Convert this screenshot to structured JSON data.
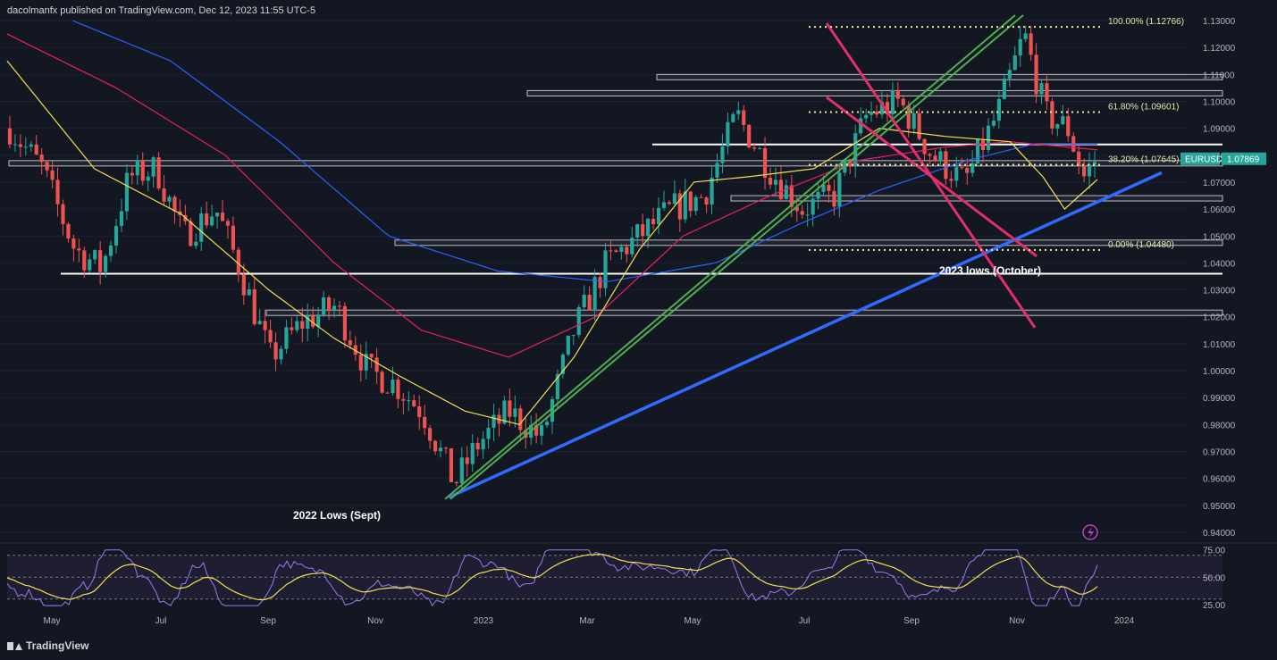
{
  "publisher": "dacolmanfx published on TradingView.com, Dec 12, 2023 11:55 UTC-5",
  "branding": "TradingView",
  "colors": {
    "background": "#131722",
    "candle_up": "#26a69a",
    "candle_down": "#ef5350",
    "sma_short": "#f5e050",
    "sma_mid": "#e91e63",
    "sma_long": "#2962ff",
    "trendline_up": "#2f6bff",
    "channel_down": "#e0306a",
    "channel_up": "#4caf50",
    "rsi": "#9b7cf0",
    "rsi_ma": "#f5e050",
    "price_tag": "#26a69a"
  },
  "annotations": {
    "low_2022": "2022 Lows (Sept)",
    "low_2023": "2023 lows (October)"
  },
  "chart_data": [
    {
      "type": "candlestick",
      "symbol": "EURUSD",
      "last_price": "1.07869",
      "ylim": [
        0.937,
        1.131
      ],
      "x_ticks": [
        "May",
        "Jul",
        "Sep",
        "Nov",
        "2023",
        "Mar",
        "May",
        "Jul",
        "Sep",
        "Nov",
        "2024"
      ],
      "y_ticks": [
        "1.13000",
        "1.12000",
        "1.11000",
        "1.10000",
        "1.09000",
        "1.08000",
        "1.07000",
        "1.06000",
        "1.05000",
        "1.04000",
        "1.03000",
        "1.02000",
        "1.01000",
        "1.00000",
        "0.99000",
        "0.98000",
        "0.97000",
        "0.96000",
        "0.95000",
        "0.94000"
      ],
      "path_anchors": [
        {
          "t": 0,
          "p": 1.09
        },
        {
          "t": 0.03,
          "p": 1.075
        },
        {
          "t": 0.06,
          "p": 1.045
        },
        {
          "t": 0.085,
          "p": 1.038
        },
        {
          "t": 0.11,
          "p": 1.072
        },
        {
          "t": 0.135,
          "p": 1.075
        },
        {
          "t": 0.16,
          "p": 1.05
        },
        {
          "t": 0.19,
          "p": 1.06
        },
        {
          "t": 0.21,
          "p": 1.04
        },
        {
          "t": 0.24,
          "p": 1.005
        },
        {
          "t": 0.27,
          "p": 1.018
        },
        {
          "t": 0.3,
          "p": 1.024
        },
        {
          "t": 0.33,
          "p": 1.0
        },
        {
          "t": 0.355,
          "p": 0.995
        },
        {
          "t": 0.38,
          "p": 0.985
        },
        {
          "t": 0.41,
          "p": 0.958
        },
        {
          "t": 0.43,
          "p": 0.972
        },
        {
          "t": 0.46,
          "p": 0.985
        },
        {
          "t": 0.49,
          "p": 0.975
        },
        {
          "t": 0.52,
          "p": 1.015
        },
        {
          "t": 0.55,
          "p": 1.04
        },
        {
          "t": 0.58,
          "p": 1.05
        },
        {
          "t": 0.61,
          "p": 1.06
        },
        {
          "t": 0.64,
          "p": 1.065
        },
        {
          "t": 0.67,
          "p": 1.095
        },
        {
          "t": 0.7,
          "p": 1.075
        },
        {
          "t": 0.73,
          "p": 1.06
        },
        {
          "t": 0.76,
          "p": 1.065
        },
        {
          "t": 0.79,
          "p": 1.095
        },
        {
          "t": 0.82,
          "p": 1.1
        },
        {
          "t": 0.85,
          "p": 1.08
        },
        {
          "t": 0.88,
          "p": 1.07
        },
        {
          "t": 0.91,
          "p": 1.095
        },
        {
          "t": 0.935,
          "p": 1.125
        },
        {
          "t": 0.955,
          "p": 1.095
        },
        {
          "t": 0.975,
          "p": 1.09
        },
        {
          "t": 0.99,
          "p": 1.072
        },
        {
          "t": 1.0,
          "p": 1.078
        }
      ],
      "sma_short_anchors": [
        {
          "t": 0,
          "p": 1.115
        },
        {
          "t": 0.08,
          "p": 1.075
        },
        {
          "t": 0.16,
          "p": 1.058
        },
        {
          "t": 0.24,
          "p": 1.03
        },
        {
          "t": 0.3,
          "p": 1.012
        },
        {
          "t": 0.36,
          "p": 0.998
        },
        {
          "t": 0.42,
          "p": 0.985
        },
        {
          "t": 0.47,
          "p": 0.98
        },
        {
          "t": 0.52,
          "p": 1.005
        },
        {
          "t": 0.58,
          "p": 1.045
        },
        {
          "t": 0.63,
          "p": 1.07
        },
        {
          "t": 0.68,
          "p": 1.072
        },
        {
          "t": 0.74,
          "p": 1.075
        },
        {
          "t": 0.8,
          "p": 1.09
        },
        {
          "t": 0.86,
          "p": 1.087
        },
        {
          "t": 0.92,
          "p": 1.085
        },
        {
          "t": 0.95,
          "p": 1.072
        },
        {
          "t": 0.97,
          "p": 1.06
        },
        {
          "t": 1.0,
          "p": 1.071
        }
      ],
      "sma_mid_anchors": [
        {
          "t": 0,
          "p": 1.125
        },
        {
          "t": 0.1,
          "p": 1.105
        },
        {
          "t": 0.2,
          "p": 1.08
        },
        {
          "t": 0.3,
          "p": 1.04
        },
        {
          "t": 0.38,
          "p": 1.015
        },
        {
          "t": 0.46,
          "p": 1.005
        },
        {
          "t": 0.54,
          "p": 1.02
        },
        {
          "t": 0.62,
          "p": 1.05
        },
        {
          "t": 0.7,
          "p": 1.065
        },
        {
          "t": 0.78,
          "p": 1.078
        },
        {
          "t": 0.86,
          "p": 1.083
        },
        {
          "t": 0.92,
          "p": 1.085
        },
        {
          "t": 1.0,
          "p": 1.082
        }
      ],
      "sma_long_anchors": [
        {
          "t": 0.06,
          "p": 1.13
        },
        {
          "t": 0.15,
          "p": 1.115
        },
        {
          "t": 0.25,
          "p": 1.085
        },
        {
          "t": 0.35,
          "p": 1.05
        },
        {
          "t": 0.45,
          "p": 1.037
        },
        {
          "t": 0.55,
          "p": 1.033
        },
        {
          "t": 0.65,
          "p": 1.04
        },
        {
          "t": 0.73,
          "p": 1.055
        },
        {
          "t": 0.8,
          "p": 1.067
        },
        {
          "t": 0.88,
          "p": 1.078
        },
        {
          "t": 0.94,
          "p": 1.084
        },
        {
          "t": 1.0,
          "p": 1.084
        }
      ]
    },
    {
      "type": "line",
      "name": "RSI",
      "ylim": [
        20,
        78
      ],
      "y_ticks": [
        "75.00",
        "50.00",
        "25.00"
      ],
      "levels": [
        70,
        50,
        30
      ]
    }
  ],
  "horizontal_levels": [
    1.109,
    1.103,
    1.084,
    1.077,
    1.064,
    1.0475,
    1.036,
    1.0215
  ],
  "fibonacci": [
    {
      "label": "100.00% (1.12766)",
      "value": 1.12766
    },
    {
      "label": "61.80% (1.09601)",
      "value": 1.09601
    },
    {
      "label": "38.20% (1.07645)",
      "value": 1.07645
    },
    {
      "label": "0.00% (1.04480)",
      "value": 1.0448
    }
  ]
}
